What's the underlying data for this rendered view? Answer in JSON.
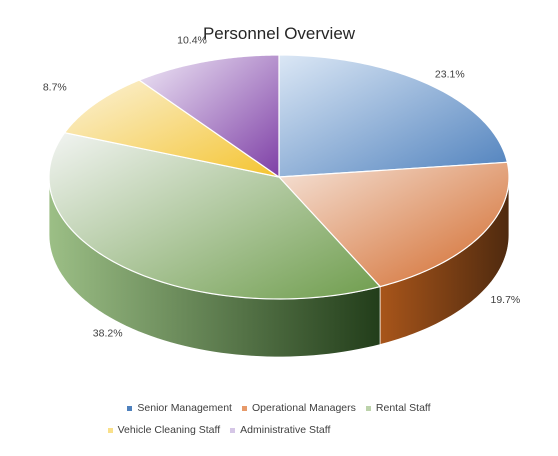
{
  "chart_data": {
    "type": "pie",
    "title": "Personnel Overview",
    "categories": [
      "Senior Management",
      "Operational Managers",
      "Rental Staff",
      "Vehicle Cleaning Staff",
      "Administrative Staff"
    ],
    "values": [
      23.1,
      19.7,
      38.2,
      8.7,
      10.4
    ],
    "data_labels": [
      "23.1%",
      "19.7%",
      "38.2%",
      "8.7%",
      "10.4%"
    ],
    "colors": [
      "#4f81bd",
      "#c0504d",
      "#5a8a3a",
      "#f4c430",
      "#7e4fa6"
    ],
    "legend_position": "bottom",
    "style": "3d"
  }
}
